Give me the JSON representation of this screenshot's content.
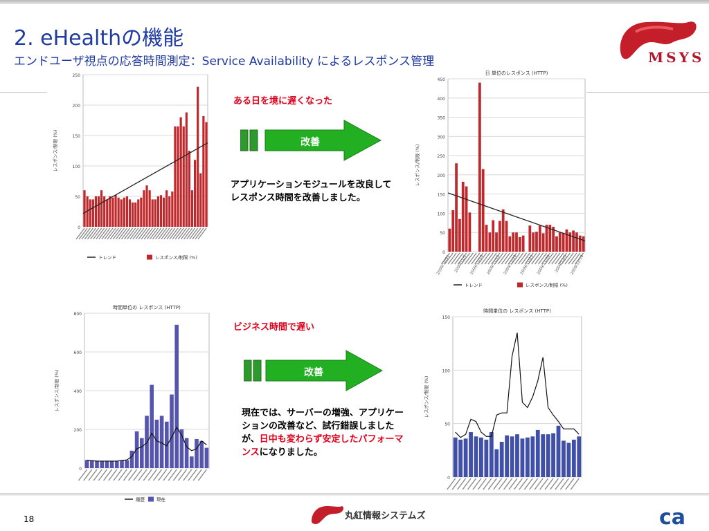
{
  "header": {
    "title": "2. eHealthの機能",
    "subtitle": "エンドユーザ視点の応答時間測定：Service Availability によるレスポンス管理"
  },
  "brand": {
    "logo_text": "MSYS",
    "accent_color": "#b0182a",
    "title_color": "#1f3aa0"
  },
  "annotations": {
    "note1": "ある日を境に遅くなった",
    "note2": "ビジネス時間で遅い",
    "arrow1_label": "改善",
    "arrow2_label": "改善",
    "desc1": "アプリケーションモジュールを改良してレスポンス時間を改善しました。",
    "desc2_pre": "現在では、サーバーの増強、アプリケーションの改善など、試行錯誤しましたが、",
    "desc2_highlight": "日中も変わらず安定したパフォーマンス",
    "desc2_post": "になりました。"
  },
  "footer": {
    "page_number": "18",
    "company": "丸紅情報システムズ",
    "partner_logo": "ca"
  },
  "charts": {
    "c1": {
      "type": "bar",
      "ylabel": "レスポンス/制限 (%)",
      "ylim": [
        0,
        250
      ],
      "yticks": [
        "0",
        "50",
        "100",
        "150",
        "200",
        "250"
      ],
      "legend": [
        "トレンド",
        "レスポンス/制限 (%)"
      ],
      "bar_color": "#c0282c",
      "values": [
        60,
        50,
        45,
        45,
        50,
        50,
        60,
        50,
        45,
        50,
        48,
        52,
        48,
        45,
        48,
        50,
        45,
        40,
        40,
        45,
        48,
        60,
        68,
        60,
        45,
        45,
        50,
        52,
        48,
        60,
        50,
        58,
        165,
        165,
        180,
        165,
        188,
        125,
        60,
        110,
        230,
        88,
        182,
        172
      ],
      "trend": [
        22,
        138
      ]
    },
    "c2": {
      "type": "bar",
      "title": "日 単位のレスポンス (HTTP)",
      "ylabel": "レスポンス/制限 (%)",
      "ylim": [
        0,
        450
      ],
      "yticks": [
        "0",
        "50",
        "100",
        "150",
        "200",
        "250",
        "300",
        "350",
        "400",
        "450"
      ],
      "xlabels": [
        "2009/10/31",
        "2009/11/5",
        "2009/11/10",
        "2009/11/15",
        "2009/11/20",
        "2009/11/25",
        "2009/11/30",
        "2009/12/5",
        "2009/12/10"
      ],
      "legend": [
        "トレンド",
        "レスポンス/制限 (%)"
      ],
      "bar_color": "#c0282c",
      "values": [
        60,
        108,
        230,
        85,
        182,
        170,
        102,
        0,
        0,
        440,
        215,
        70,
        50,
        82,
        50,
        80,
        110,
        80,
        40,
        50,
        50,
        38,
        42,
        0,
        68,
        50,
        52,
        68,
        48,
        70,
        70,
        65,
        40,
        50,
        48,
        58,
        50,
        55,
        50,
        42,
        40
      ],
      "trend": [
        153,
        28
      ]
    },
    "c3": {
      "type": "bar",
      "title": "時間単位の レスポンス (HTTP)",
      "ylabel": "レスポンス/制限 (%)",
      "ylim": [
        0,
        800
      ],
      "yticks": [
        "0",
        "200",
        "400",
        "600",
        "800"
      ],
      "legend": [
        "履歴",
        "現在"
      ],
      "bar_color": "#5555b0",
      "values": [
        42,
        40,
        38,
        38,
        38,
        38,
        38,
        40,
        40,
        90,
        190,
        155,
        270,
        430,
        250,
        270,
        240,
        380,
        740,
        200,
        155,
        60,
        150,
        140,
        105
      ],
      "history": [
        40,
        38,
        36,
        36,
        36,
        36,
        36,
        40,
        42,
        60,
        100,
        110,
        130,
        180,
        140,
        130,
        115,
        160,
        210,
        170,
        110,
        90,
        100,
        140,
        120
      ]
    },
    "c4": {
      "type": "bar",
      "title": "時間単位の レスポンス (HTTP)",
      "ylabel": "レスポンス/制限 (%)",
      "ylim": [
        0,
        150
      ],
      "yticks": [
        "0",
        "50",
        "100",
        "150"
      ],
      "legend": [
        "履歴",
        "現在"
      ],
      "bar_color": "#4050a8",
      "values": [
        37,
        35,
        36,
        42,
        38,
        37,
        35,
        42,
        26,
        33,
        39,
        38,
        40,
        36,
        37,
        38,
        44,
        40,
        40,
        41,
        48,
        34,
        32,
        35,
        38
      ],
      "history": [
        42,
        37,
        40,
        54,
        52,
        42,
        38,
        38,
        58,
        60,
        60,
        113,
        135,
        70,
        65,
        75,
        90,
        112,
        65,
        58,
        52,
        45,
        45,
        45,
        40
      ]
    }
  }
}
